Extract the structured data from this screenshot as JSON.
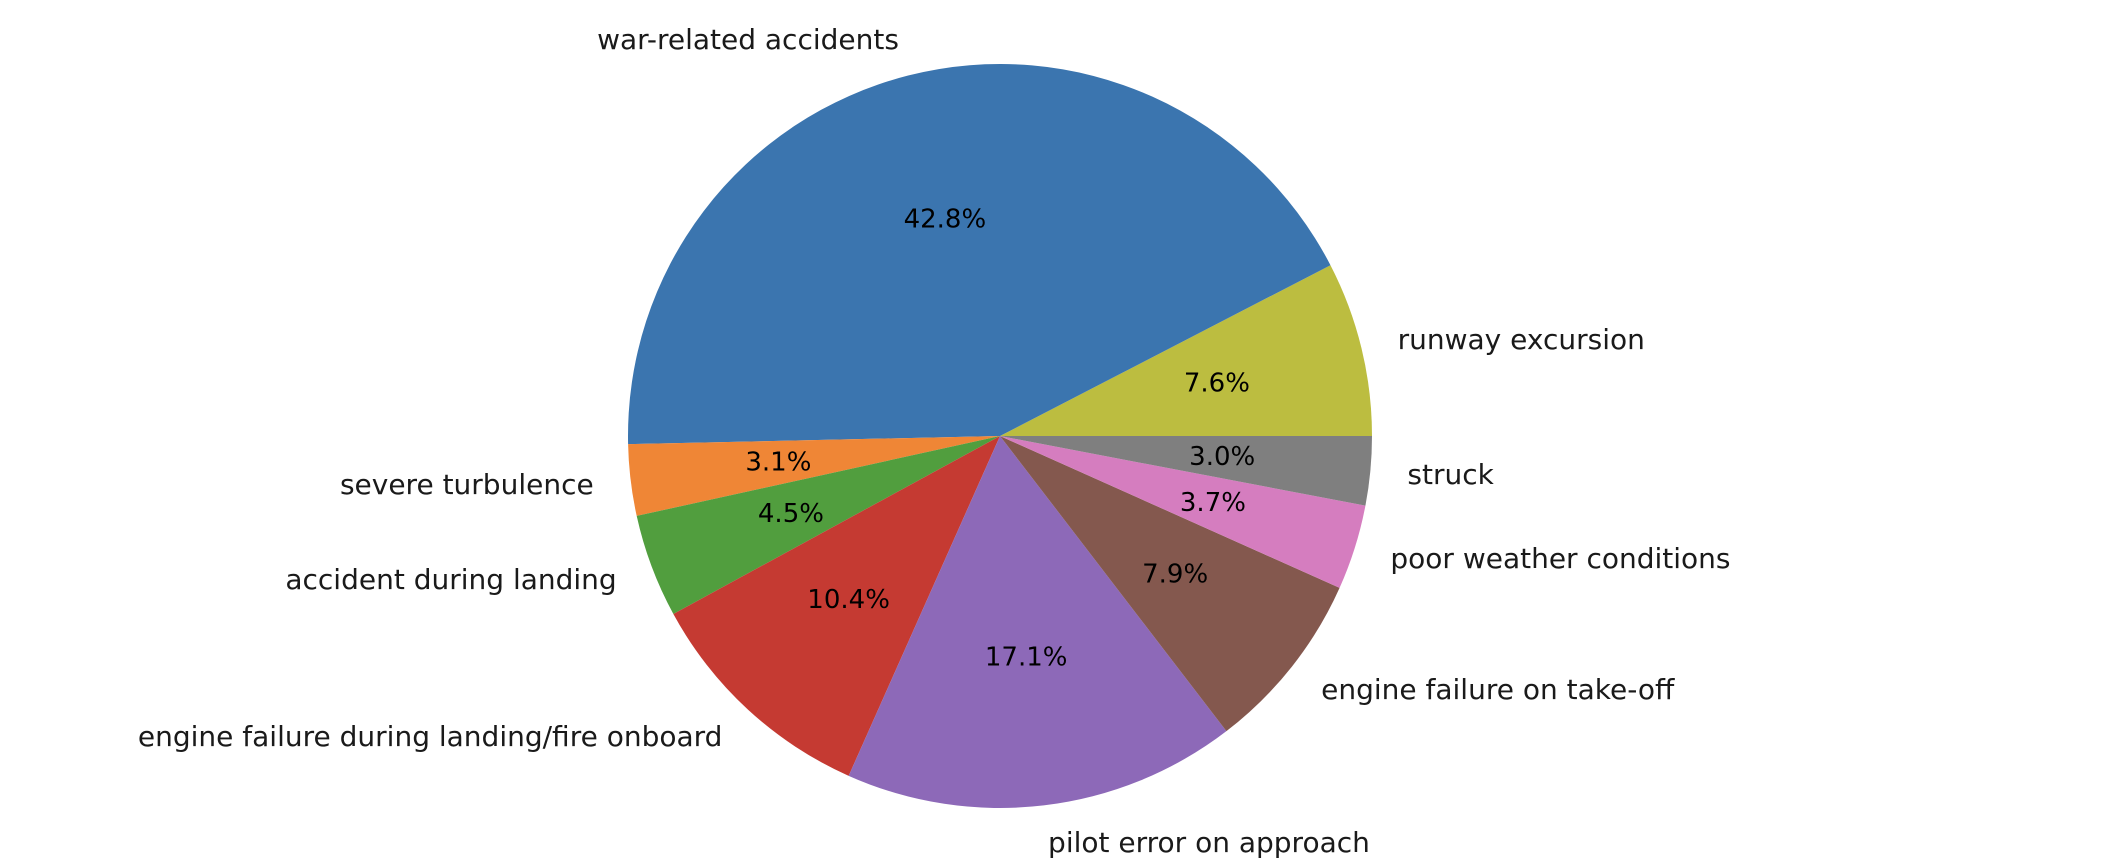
{
  "chart_data": {
    "type": "pie",
    "title": "",
    "start_angle_deg": 0,
    "direction": "counterclockwise",
    "slices": [
      {
        "label": "runway excursion",
        "value": 7.6,
        "pct_text": "7.6%",
        "color": "#bcbd40"
      },
      {
        "label": "war-related accidents",
        "value": 42.8,
        "pct_text": "42.8%",
        "color": "#3b75af"
      },
      {
        "label": "severe turbulence",
        "value": 3.1,
        "pct_text": "3.1%",
        "color": "#ef8636"
      },
      {
        "label": "accident during landing",
        "value": 4.5,
        "pct_text": "4.5%",
        "color": "#519e3e"
      },
      {
        "label": "engine failure during landing/fire onboard",
        "value": 10.4,
        "pct_text": "10.4%",
        "color": "#c53a32"
      },
      {
        "label": "pilot error on approach",
        "value": 17.1,
        "pct_text": "17.1%",
        "color": "#8d69b8"
      },
      {
        "label": "engine failure on take-off",
        "value": 7.9,
        "pct_text": "7.9%",
        "color": "#84584e"
      },
      {
        "label": "poor weather conditions",
        "value": 3.7,
        "pct_text": "3.7%",
        "color": "#d57dbf"
      },
      {
        "label": "struck",
        "value": 3.0,
        "pct_text": "3.0%",
        "color": "#7f7f7f"
      }
    ]
  }
}
